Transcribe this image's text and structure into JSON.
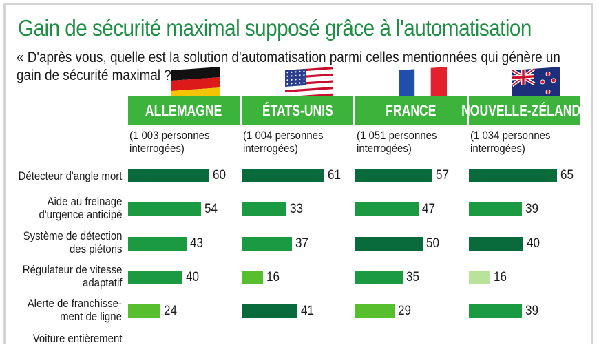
{
  "colors": {
    "title": "#1f8f45",
    "header_bg": "#3cb43c",
    "header_text": "#ffffff",
    "bar_dark": "#096b3c",
    "bar_mid": "#1c9a42",
    "bar_bright": "#57bf2d",
    "bar_light": "#b9e39b"
  },
  "title": "Gain de sécurité maximal supposé grâce à l'automatisation",
  "question": "« D'après vous, quelle est la solution d'automatisation parmi celles mentionnées qui génère un gain de sécurité maximal ? »*",
  "chart_data": {
    "type": "bar",
    "orientation": "horizontal",
    "title": "Gain de sécurité maximal supposé grâce à l'automatisation",
    "categories": [
      "Détecteur d'angle mort",
      "Aide au freinage d'urgence anticipé",
      "Système de détection des piétons",
      "Régulateur de vitesse adaptatif",
      "Alerte de franchissement de ligne"
    ],
    "category_lines": [
      [
        "Détecteur d'angle mort"
      ],
      [
        "Aide au freinage",
        "d'urgence anticipé"
      ],
      [
        "Système de détection",
        "des piétons"
      ],
      [
        "Régulateur de vitesse",
        "adaptatif"
      ],
      [
        "Alerte de franchisse-",
        "ment de ligne"
      ]
    ],
    "partial_category_text": "Voiture entièrement",
    "series": [
      {
        "name": "ALLEMAGNE",
        "sample": [
          "(1 003 personnes",
          "interrogées)"
        ],
        "flag": "germany-flag",
        "values": [
          60,
          54,
          43,
          40,
          24
        ],
        "shades": [
          "dark",
          "mid",
          "mid",
          "mid",
          "bright"
        ]
      },
      {
        "name": "ÉTATS-UNIS",
        "sample": [
          "(1 004 personnes",
          "interrogées)"
        ],
        "flag": "usa-flag",
        "values": [
          61,
          33,
          37,
          16,
          41
        ],
        "shades": [
          "dark",
          "mid",
          "mid",
          "bright",
          "dark"
        ]
      },
      {
        "name": "FRANCE",
        "sample": [
          "(1 051 personnes",
          "interrogées)"
        ],
        "flag": "france-flag",
        "values": [
          57,
          47,
          50,
          35,
          29
        ],
        "shades": [
          "dark",
          "mid",
          "dark",
          "mid",
          "bright"
        ]
      },
      {
        "name": "NOUVELLE-ZÉLANDE",
        "sample": [
          "(1 034 personnes",
          "interrogées)"
        ],
        "flag": "new-zealand-flag",
        "values": [
          65,
          39,
          40,
          16,
          39
        ],
        "shades": [
          "dark",
          "mid",
          "dark",
          "light",
          "mid"
        ]
      }
    ],
    "xlim": [
      0,
      65
    ],
    "grid": false,
    "legend": "none"
  }
}
